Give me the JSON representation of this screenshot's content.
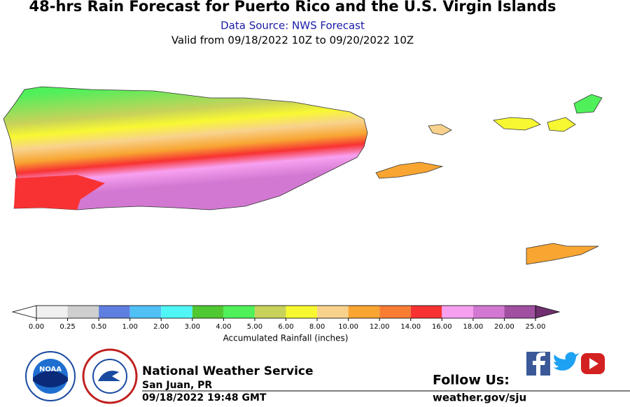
{
  "title": "48-hrs Rain Forecast for Puerto Rico and the U.S. Virgin Islands",
  "subtitle": "Data Source: NWS Forecast",
  "valid": "Valid from 09/18/2022 10Z to 09/20/2022 10Z",
  "colorbar": {
    "label": "Accumulated Rainfall (inches)",
    "ticks": [
      {
        "value": 0,
        "label": "0.00"
      },
      {
        "value": 0.25,
        "label": "0.25"
      },
      {
        "value": 0.5,
        "label": "0.50"
      },
      {
        "value": 1,
        "label": "1.00"
      },
      {
        "value": 2,
        "label": "2.00"
      },
      {
        "value": 3,
        "label": "3.00"
      },
      {
        "value": 4,
        "label": "4.00"
      },
      {
        "value": 5,
        "label": "5.00"
      },
      {
        "value": 6,
        "label": "6.00"
      },
      {
        "value": 8,
        "label": "8.00"
      },
      {
        "value": 10,
        "label": "10.00"
      },
      {
        "value": 12,
        "label": "12.00"
      },
      {
        "value": 14,
        "label": "14.00"
      },
      {
        "value": 16,
        "label": "16.00"
      },
      {
        "value": 18,
        "label": "18.00"
      },
      {
        "value": 20,
        "label": "20.00"
      },
      {
        "value": 25,
        "label": "25.00"
      }
    ],
    "colors": [
      "#f0f0f0",
      "#cfcfcf",
      "#5f7fe0",
      "#50c0f5",
      "#50f5f5",
      "#4fc832",
      "#4ff05a",
      "#c8d25a",
      "#f8f832",
      "#f8d28c",
      "#f8a532",
      "#f87d32",
      "#f83232",
      "#f8a0f0",
      "#d278d2",
      "#a050a0"
    ],
    "under_color": "#ffffff",
    "over_color": "#70306f"
  },
  "footer": {
    "logo_noaa": "NOAA",
    "agency": "National Weather Service",
    "office": "San Juan, PR",
    "issued": "09/18/2022 19:48 GMT",
    "follow": "Follow Us:",
    "website": "weather.gov/sju"
  }
}
